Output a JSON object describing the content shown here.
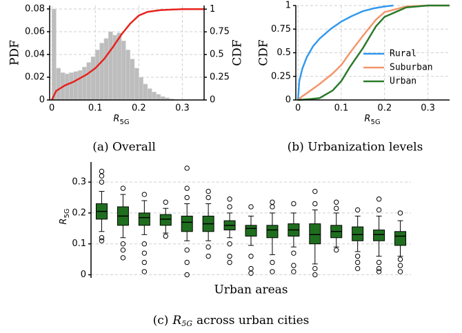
{
  "chart_data": [
    {
      "type": "histogram",
      "ylabel": "PDF",
      "y2label": "CDF",
      "xlabel": {
        "text": "R",
        "subscript": "5G"
      },
      "caption": "(a) Overall",
      "bins": [
        0,
        0.01,
        0.02,
        0.03,
        0.04,
        0.05,
        0.06,
        0.07,
        0.08,
        0.09,
        0.1,
        0.11,
        0.12,
        0.13,
        0.14,
        0.15,
        0.16,
        0.17,
        0.18,
        0.19,
        0.2,
        0.21,
        0.22,
        0.23,
        0.24,
        0.25,
        0.26,
        0.27,
        0.28,
        0.29,
        0.3
      ],
      "values": [
        0.08,
        0.028,
        0.024,
        0.023,
        0.024,
        0.025,
        0.026,
        0.029,
        0.033,
        0.038,
        0.044,
        0.05,
        0.054,
        0.06,
        0.057,
        0.059,
        0.052,
        0.044,
        0.036,
        0.028,
        0.02,
        0.014,
        0.01,
        0.007,
        0.005,
        0.003,
        0.002,
        0.001,
        0.0005,
        0.0002
      ],
      "color": "#bdbdbd",
      "line": {
        "x": [
          0,
          0.01,
          0.03,
          0.05,
          0.08,
          0.1,
          0.12,
          0.14,
          0.16,
          0.18,
          0.2,
          0.22,
          0.25,
          0.3,
          0.35
        ],
        "values": [
          0,
          0.1,
          0.16,
          0.2,
          0.28,
          0.35,
          0.45,
          0.58,
          0.72,
          0.84,
          0.93,
          0.97,
          0.99,
          1,
          1
        ],
        "color": "#e8221c",
        "axis": "y2"
      },
      "xlim": [
        -0.005,
        0.35
      ],
      "xticks": [
        0,
        0.1,
        0.2,
        0.3
      ],
      "ylim": [
        0,
        0.083
      ],
      "yticks": [
        0,
        0.02,
        0.04,
        0.06,
        0.08
      ],
      "y2lim": [
        0,
        1.04
      ],
      "y2ticks": [
        0,
        0.25,
        0.5,
        0.75,
        1
      ],
      "grid": true
    },
    {
      "type": "line",
      "ylabel": "CDF",
      "xlabel": {
        "text": "R",
        "subscript": "5G"
      },
      "caption": "(b) Urbanization levels",
      "series": [
        {
          "name": "Rural",
          "color": "#3399ee",
          "x": [
            0,
            0.003,
            0.01,
            0.02,
            0.035,
            0.05,
            0.075,
            0.1,
            0.125,
            0.15,
            0.175,
            0.2,
            0.22
          ],
          "values": [
            0,
            0.2,
            0.33,
            0.45,
            0.57,
            0.65,
            0.75,
            0.83,
            0.89,
            0.94,
            0.97,
            0.99,
            1
          ]
        },
        {
          "name": "Suburban",
          "color": "#f4956a",
          "x": [
            0,
            0.01,
            0.02,
            0.05,
            0.08,
            0.1,
            0.12,
            0.15,
            0.18,
            0.2,
            0.25,
            0.3,
            0.35
          ],
          "values": [
            0,
            0.04,
            0.07,
            0.17,
            0.28,
            0.37,
            0.5,
            0.68,
            0.85,
            0.93,
            0.99,
            1,
            1
          ]
        },
        {
          "name": "Urban",
          "color": "#2a7a2a",
          "x": [
            0,
            0.03,
            0.05,
            0.08,
            0.1,
            0.12,
            0.15,
            0.18,
            0.2,
            0.25,
            0.3,
            0.35
          ],
          "values": [
            0,
            0.01,
            0.02,
            0.1,
            0.2,
            0.35,
            0.55,
            0.78,
            0.88,
            0.98,
            1,
            1
          ]
        }
      ],
      "xlim": [
        -0.005,
        0.35
      ],
      "xticks": [
        0,
        0.1,
        0.2,
        0.3
      ],
      "ylim": [
        0,
        1.0
      ],
      "yticks": [
        0,
        0.25,
        0.5,
        0.75,
        1
      ],
      "grid": true,
      "legend": "right"
    },
    {
      "type": "box",
      "ylabel": {
        "text": "R",
        "subscript": "5G"
      },
      "xlabel": "Urban areas",
      "caption": {
        "prefix": "(c)",
        "symbol": "R",
        "subscript": "5G",
        "suffix": "across urban cities"
      },
      "categories": [
        null,
        null,
        null,
        null,
        null,
        null,
        null,
        null,
        null,
        null,
        null,
        null,
        null,
        null,
        null
      ],
      "color": "#1f6e1f",
      "boxes": [
        {
          "q1": 0.18,
          "median": 0.205,
          "q3": 0.23,
          "whislo": 0.14,
          "whishi": 0.27,
          "fliers": [
            0.12,
            0.11,
            0.3,
            0.32,
            0.335
          ]
        },
        {
          "q1": 0.16,
          "median": 0.19,
          "q3": 0.22,
          "whislo": 0.12,
          "whishi": 0.26,
          "fliers": [
            0.28,
            0.1,
            0.08,
            0.055
          ]
        },
        {
          "q1": 0.16,
          "median": 0.185,
          "q3": 0.2,
          "whislo": 0.13,
          "whishi": 0.24,
          "fliers": [
            0.26,
            0.1,
            0.07,
            0.04,
            0.01
          ]
        },
        {
          "q1": 0.16,
          "median": 0.18,
          "q3": 0.195,
          "whislo": 0.135,
          "whishi": 0.215,
          "fliers": [
            0.235,
            0.125
          ]
        },
        {
          "q1": 0.14,
          "median": 0.17,
          "q3": 0.19,
          "whislo": 0.11,
          "whishi": 0.23,
          "fliers": [
            0.25,
            0.28,
            0.345,
            0.08,
            0.04,
            0
          ]
        },
        {
          "q1": 0.14,
          "median": 0.165,
          "q3": 0.19,
          "whislo": 0.11,
          "whishi": 0.23,
          "fliers": [
            0.25,
            0.27,
            0.09,
            0.06
          ]
        },
        {
          "q1": 0.145,
          "median": 0.16,
          "q3": 0.175,
          "whislo": 0.12,
          "whishi": 0.2,
          "fliers": [
            0.22,
            0.245,
            0.1,
            0.06,
            0.04
          ]
        },
        {
          "q1": 0.125,
          "median": 0.15,
          "q3": 0.16,
          "whislo": 0.095,
          "whishi": 0.19,
          "fliers": [
            0.22,
            0.06,
            0.02,
            0.005
          ]
        },
        {
          "q1": 0.12,
          "median": 0.145,
          "q3": 0.16,
          "whislo": 0.065,
          "whishi": 0.2,
          "fliers": [
            0.22,
            0.235,
            0.04,
            0.01
          ]
        },
        {
          "q1": 0.125,
          "median": 0.145,
          "q3": 0.165,
          "whislo": 0.09,
          "whishi": 0.2,
          "fliers": [
            0.23,
            0.07,
            0.03,
            0.01
          ]
        },
        {
          "q1": 0.1,
          "median": 0.13,
          "q3": 0.165,
          "whislo": 0.035,
          "whishi": 0.21,
          "fliers": [
            0.23,
            0.27,
            0.02,
            0.0
          ]
        },
        {
          "q1": 0.12,
          "median": 0.14,
          "q3": 0.16,
          "whislo": 0.09,
          "whishi": 0.2,
          "fliers": [
            0.215,
            0.235,
            0.08
          ]
        },
        {
          "q1": 0.11,
          "median": 0.13,
          "q3": 0.155,
          "whislo": 0.075,
          "whishi": 0.19,
          "fliers": [
            0.21,
            0.06,
            0.04,
            0.02
          ]
        },
        {
          "q1": 0.11,
          "median": 0.13,
          "q3": 0.145,
          "whislo": 0.06,
          "whishi": 0.19,
          "fliers": [
            0.21,
            0.245,
            0.04,
            0.02,
            0.01
          ]
        },
        {
          "q1": 0.095,
          "median": 0.125,
          "q3": 0.14,
          "whislo": 0.06,
          "whishi": 0.175,
          "fliers": [
            0.2,
            0.05,
            0.03,
            0.01
          ]
        }
      ],
      "ylim": [
        -0.01,
        0.365
      ],
      "yticks": [
        0,
        0.1,
        0.2,
        0.3
      ],
      "grid": true
    }
  ]
}
